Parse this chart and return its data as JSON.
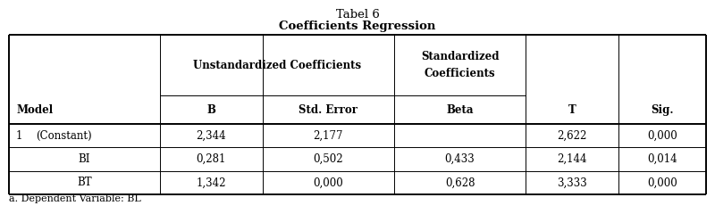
{
  "title_line1": "Tabel 6",
  "title_line2": "Coefficients Regression",
  "footnote": "a. Dependent Variable: BL",
  "col_widths_in": [
    1.55,
    1.05,
    1.35,
    1.35,
    0.95,
    0.9
  ],
  "background_color": "#ffffff",
  "font_size": 8.5,
  "title_font_size": 9.5,
  "rows": [
    [
      "1",
      "(Constant)",
      "2,344",
      "2,177",
      "",
      "2,622",
      "0,000"
    ],
    [
      "",
      "BI",
      "0,281",
      "0,502",
      "0,433",
      "2,144",
      "0,014"
    ],
    [
      "",
      "BT",
      "1,342",
      "0,000",
      "0,628",
      "3,333",
      "0,000"
    ]
  ],
  "headers2": [
    "Model",
    "B",
    "Std. Error",
    "Beta",
    "T",
    "Sig."
  ],
  "lw_outer": 1.4,
  "lw_inner": 0.7,
  "lw_thick": 1.4
}
